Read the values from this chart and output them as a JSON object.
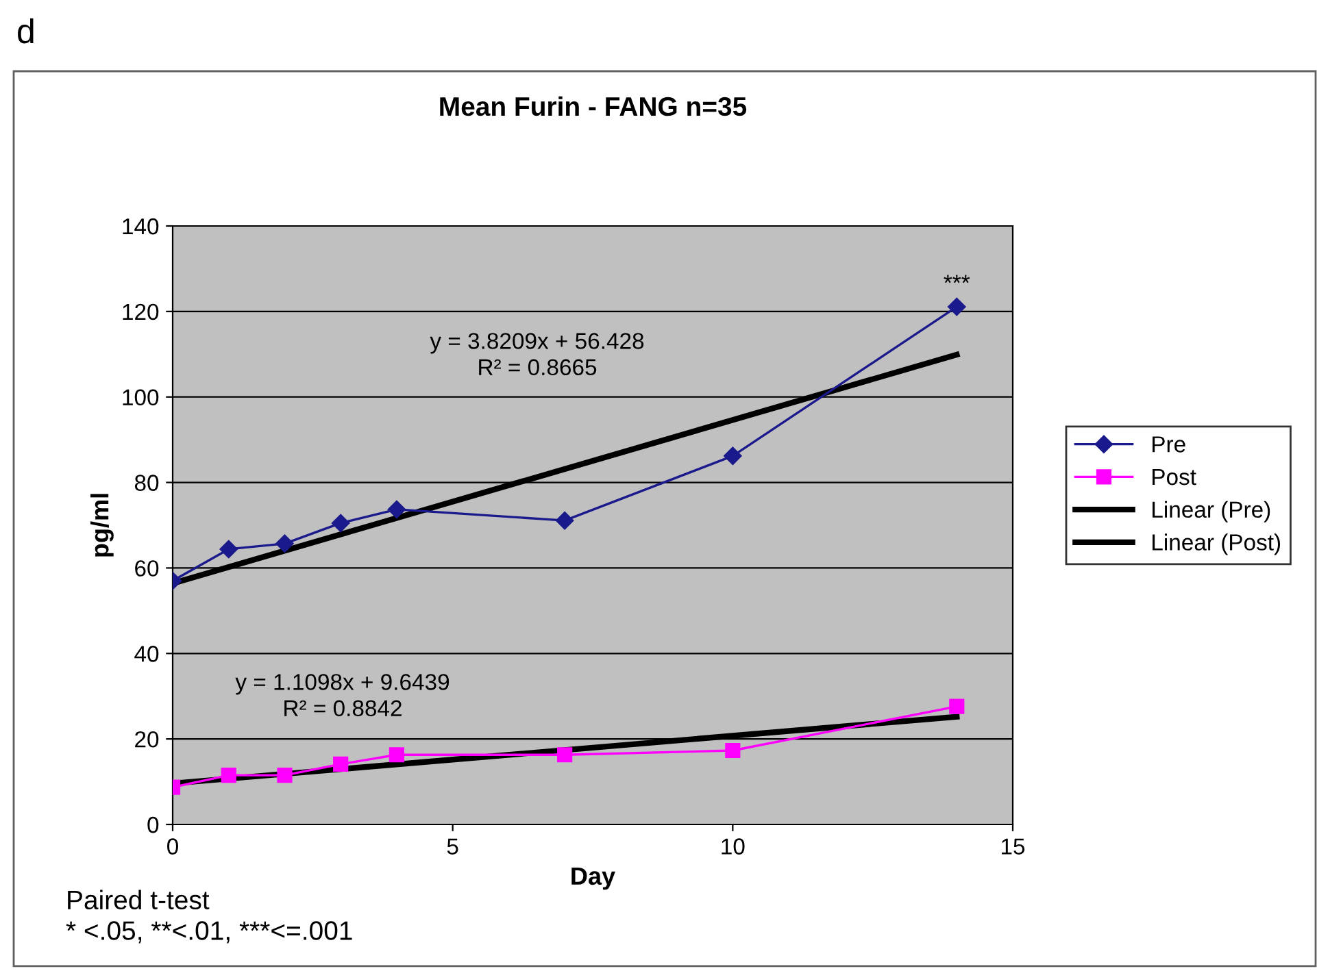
{
  "chart_data": {
    "type": "line",
    "title": "Mean Furin - FANG n=35",
    "xlabel": "Day",
    "ylabel": "pg/ml",
    "series": [
      {
        "name": "Pre",
        "color": "#1a1a8c",
        "marker": "diamond",
        "x": [
          0,
          1,
          2,
          3,
          4,
          7,
          10,
          14
        ],
        "values": [
          57.0,
          64.4,
          65.7,
          70.5,
          73.7,
          71.1,
          86.2,
          121.1
        ]
      },
      {
        "name": "Post",
        "color": "#ff00ff",
        "marker": "square",
        "x": [
          0,
          1,
          2,
          3,
          4,
          7,
          10,
          14
        ],
        "values": [
          8.7,
          11.5,
          11.5,
          14.1,
          16.3,
          16.3,
          17.3,
          27.6
        ]
      },
      {
        "name": "Linear (Pre)",
        "color": "#000000",
        "marker": "none",
        "x": [
          0,
          14
        ],
        "values": [
          56.4,
          109.9
        ]
      },
      {
        "name": "Linear (Post)",
        "color": "#000000",
        "marker": "none",
        "x": [
          0,
          14
        ],
        "values": [
          9.6,
          25.2
        ]
      }
    ],
    "xlim": [
      0,
      15
    ],
    "xticks": [
      0,
      5,
      10,
      15
    ],
    "ylim": [
      0,
      140
    ],
    "yticks": [
      0,
      20,
      40,
      60,
      80,
      100,
      120,
      140
    ],
    "grid": "y",
    "legend": "right",
    "annotations": [
      {
        "text": "***",
        "x": 14,
        "y": 121.1
      },
      "y = 3.8209x + 56.428\nR² = 0.8665",
      "y = 1.1098x + 9.6439\nR² = 0.8842",
      "d",
      "Paired t-test\n* <.05, **<.01, ***<=.001"
    ]
  }
}
